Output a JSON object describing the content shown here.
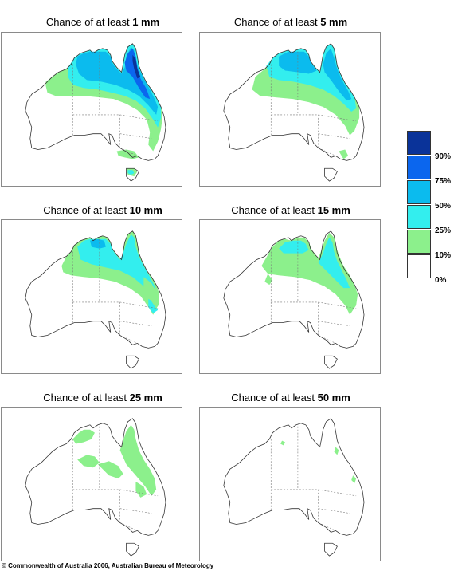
{
  "title_prefix": "Chance of at least ",
  "panels": [
    {
      "amount": "1 mm"
    },
    {
      "amount": "5 mm"
    },
    {
      "amount": "10 mm"
    },
    {
      "amount": "15 mm"
    },
    {
      "amount": "25 mm"
    },
    {
      "amount": "50 mm"
    }
  ],
  "legend": {
    "labels": [
      "90%",
      "75%",
      "50%",
      "25%",
      "10%",
      "0%"
    ],
    "colors": [
      "#0a3399",
      "#0b66ee",
      "#0bbbee",
      "#33eeee",
      "#8cf08c",
      "#ffffff"
    ]
  },
  "copyright": "© Commonwealth of Australia 2006, Australian Bureau of Meteorology"
}
